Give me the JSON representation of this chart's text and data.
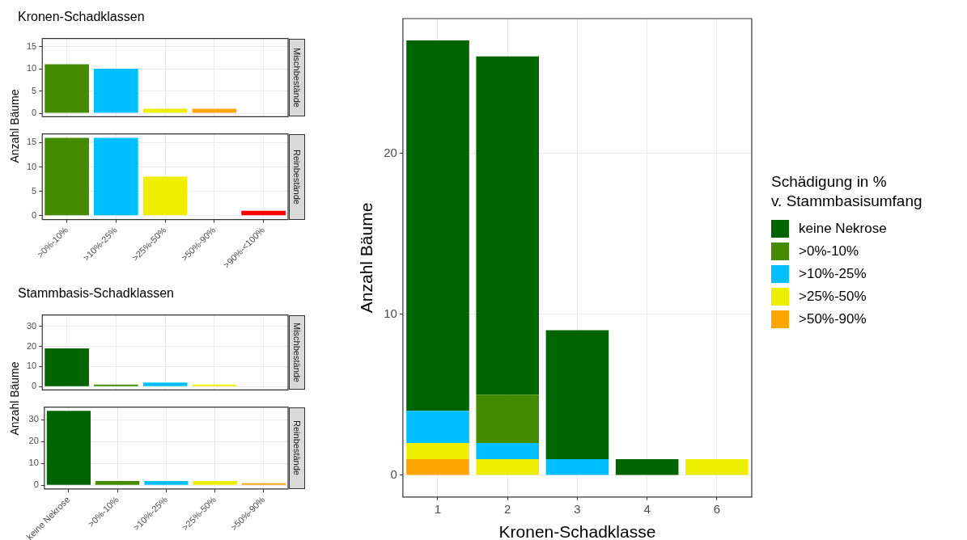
{
  "chart_data": [
    {
      "type": "bar",
      "title": "Kronen-Schadklassen",
      "subtitle": "Mischbestände",
      "ylabel": "Anzahl Bäume",
      "categories": [
        null,
        null,
        null,
        null,
        null
      ],
      "values": [
        11,
        10,
        1,
        1,
        null
      ],
      "colors": [
        "#458b00",
        "#00bfff",
        "#eeee00",
        "#ffa500",
        "#ff0000"
      ],
      "ylim": [
        -0.8,
        16.8
      ],
      "yticks": [
        0,
        5,
        10,
        15
      ],
      "grid": true,
      "tick_labels": "y"
    },
    {
      "type": "bar",
      "subtitle": "Reinbestände",
      "categories": [
        ">0%-10%",
        ">10%-25%",
        ">25%-50%",
        ">50%-90%",
        ">90%-<100%"
      ],
      "values": [
        16,
        16,
        8,
        null,
        1
      ],
      "colors": [
        "#458b00",
        "#00bfff",
        "#eeee00",
        "#ffa500",
        "#ff0000"
      ],
      "ylim": [
        -0.8,
        16.8
      ],
      "yticks": [
        0,
        5,
        10,
        15
      ],
      "grid": true
    },
    {
      "type": "bar",
      "title": "Stammbasis-Schadklassen",
      "subtitle": "Mischbestände",
      "ylabel": "Anzahl Bäume",
      "categories": [
        null,
        null,
        null,
        null,
        null
      ],
      "values": [
        19,
        1,
        2,
        1,
        null
      ],
      "colors": [
        "#006400",
        "#458b00",
        "#00bfff",
        "#eeee00",
        "#ffa500"
      ],
      "ylim": [
        -1.7,
        35.7
      ],
      "yticks": [
        0,
        10,
        20,
        30
      ],
      "grid": true,
      "tick_labels": "y"
    },
    {
      "type": "bar",
      "subtitle": "Reinbestände",
      "categories": [
        "keine Nekrose",
        ">0%-10%",
        ">10%-25%",
        ">25%-50%",
        ">50%-90%"
      ],
      "values": [
        34,
        2,
        2,
        2,
        1
      ],
      "colors": [
        "#006400",
        "#458b00",
        "#00bfff",
        "#eeee00",
        "#ffa500"
      ],
      "ylim": [
        -1.7,
        35.7
      ],
      "yticks": [
        0,
        10,
        20,
        30
      ],
      "grid": true
    },
    {
      "type": "bar",
      "stacked": true,
      "xlabel": "Kronen-Schadklasse",
      "ylabel": "Anzahl Bäume",
      "legend_title": "Schädigung in %\nv. Stammbasisumfang",
      "legend": "right",
      "categories": [
        "1",
        "2",
        "3",
        "4",
        "6"
      ],
      "ylim": [
        -1.35,
        28.35
      ],
      "yticks": [
        0,
        10,
        20
      ],
      "grid": true,
      "series": [
        {
          "name": ">50%-90%",
          "color": "#ffa500",
          "values": [
            1,
            null,
            null,
            null,
            null
          ]
        },
        {
          "name": ">25%-50%",
          "color": "#eeee00",
          "values": [
            1,
            1,
            null,
            null,
            1
          ]
        },
        {
          "name": ">10%-25%",
          "color": "#00bfff",
          "values": [
            2,
            1,
            1,
            null,
            null
          ]
        },
        {
          "name": ">0%-10%",
          "color": "#458b00",
          "values": [
            null,
            3,
            null,
            null,
            null
          ]
        },
        {
          "name": "keine Nekrose",
          "color": "#006400",
          "values": [
            23,
            21,
            8,
            1,
            null
          ]
        }
      ]
    }
  ]
}
